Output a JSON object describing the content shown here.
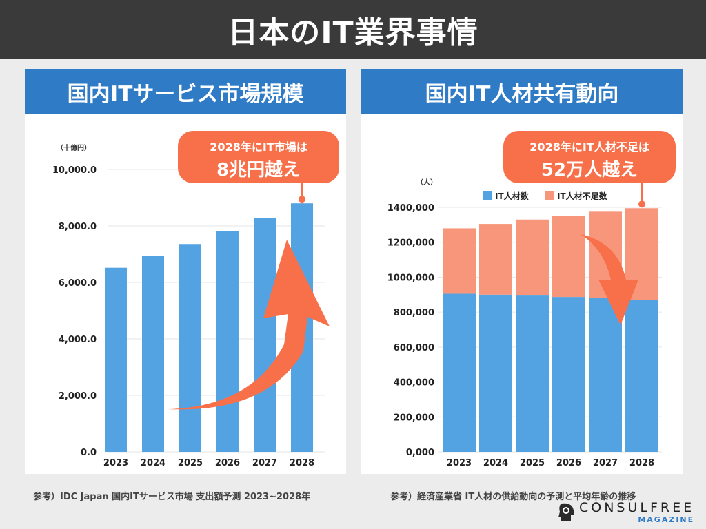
{
  "header": {
    "title": "日本のIT業界事情"
  },
  "left": {
    "title": "国内ITサービス市場規模",
    "callout": [
      "2028年にIT市場は",
      "8兆円越え"
    ],
    "source": "参考）IDC Japan 国内ITサービス市場 支出額予測 2023~2028年"
  },
  "right": {
    "title": "国内IT人材共有動向",
    "callout": [
      "2028年にIT人材不足は",
      "52万人越え"
    ],
    "source": "参考）経済産業省 IT人材の供給動向の予測と平均年齢の推移"
  },
  "logo": {
    "main": "CONSULFREE",
    "sub": "MAGAZINE"
  },
  "colors": {
    "blue": "#53a3e3",
    "salmon": "#f7967a",
    "arrow": "#f8704a",
    "callout": "#f8704a",
    "title_bar": "#2f7bc6"
  },
  "chart_data": [
    {
      "type": "bar",
      "title": "国内ITサービス市場規模",
      "unit_label": "（十億円）",
      "categories": [
        "2023",
        "2024",
        "2025",
        "2026",
        "2027",
        "2028"
      ],
      "values": [
        6520,
        6930,
        7360,
        7810,
        8290,
        8800
      ],
      "ylim": [
        0,
        10000
      ],
      "yticks": [
        0,
        2000,
        4000,
        6000,
        8000,
        10000
      ],
      "ytick_labels": [
        "0.0",
        "2,000.0",
        "4,000.0",
        "6,000.0",
        "8,000.0",
        "10,000.0"
      ],
      "grid": true
    },
    {
      "type": "bar",
      "stacked": true,
      "title": "国内IT人材共有動向",
      "unit_label": "（人）",
      "categories": [
        "2023",
        "2024",
        "2025",
        "2026",
        "2027",
        "2028"
      ],
      "series": [
        {
          "name": "IT人材数",
          "values": [
            905000,
            900000,
            895000,
            887000,
            880000,
            870000
          ]
        },
        {
          "name": "IT人材不足数",
          "values": [
            375000,
            405000,
            435000,
            463000,
            495000,
            525000
          ]
        }
      ],
      "ylim": [
        0,
        1400000
      ],
      "yticks": [
        0,
        200000,
        400000,
        600000,
        800000,
        1000000,
        1200000,
        1400000
      ],
      "ytick_labels": [
        "0,000",
        "200,000",
        "400,000",
        "600,000",
        "800,000",
        "1000,000",
        "1200,000",
        "1400,000"
      ],
      "legend_position": "top-right",
      "grid": true
    }
  ]
}
